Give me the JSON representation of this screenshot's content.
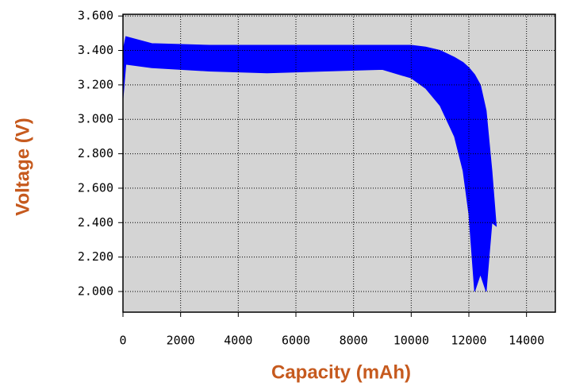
{
  "chart_data": {
    "type": "band",
    "xlabel": "Capacity (mAh)",
    "ylabel": "Voltage (V)",
    "x": [
      0,
      100,
      1000,
      3000,
      5000,
      7000,
      9000,
      10000,
      10500,
      11000,
      11500,
      11800,
      12000,
      12200,
      12400,
      12600,
      12800,
      12950
    ],
    "series": [
      {
        "color": "#0000ff",
        "values": [
          3.4,
          3.48,
          3.44,
          3.43,
          3.43,
          3.43,
          3.43,
          3.43,
          3.42,
          3.4,
          3.36,
          3.33,
          3.3,
          3.26,
          3.2,
          3.05,
          2.7,
          2.38
        ]
      },
      {
        "color": "#0000ff",
        "values": [
          3.12,
          3.32,
          3.3,
          3.28,
          3.27,
          3.28,
          3.29,
          3.24,
          3.18,
          3.08,
          2.9,
          2.7,
          2.45,
          2.0,
          2.1,
          2.0,
          2.4,
          2.38
        ]
      }
    ],
    "xlim": [
      0,
      15000
    ],
    "ylim": [
      1.88,
      3.61
    ],
    "xticks": [
      0,
      2000,
      4000,
      6000,
      8000,
      10000,
      12000,
      14000
    ],
    "yticks": [
      {
        "value": 2.0,
        "label": "2.000"
      },
      {
        "value": 2.2,
        "label": "2.200"
      },
      {
        "value": 2.4,
        "label": "2.400"
      },
      {
        "value": 2.6,
        "label": "2.600"
      },
      {
        "value": 2.8,
        "label": "2.800"
      },
      {
        "value": 3.0,
        "label": "3.000"
      },
      {
        "value": 3.2,
        "label": "3.200"
      },
      {
        "value": 3.4,
        "label": "3.400"
      },
      {
        "value": 3.6,
        "label": "3.600"
      }
    ],
    "grid": true,
    "plot_background": "#d4d4d4",
    "label_color": "#c65a1e"
  }
}
